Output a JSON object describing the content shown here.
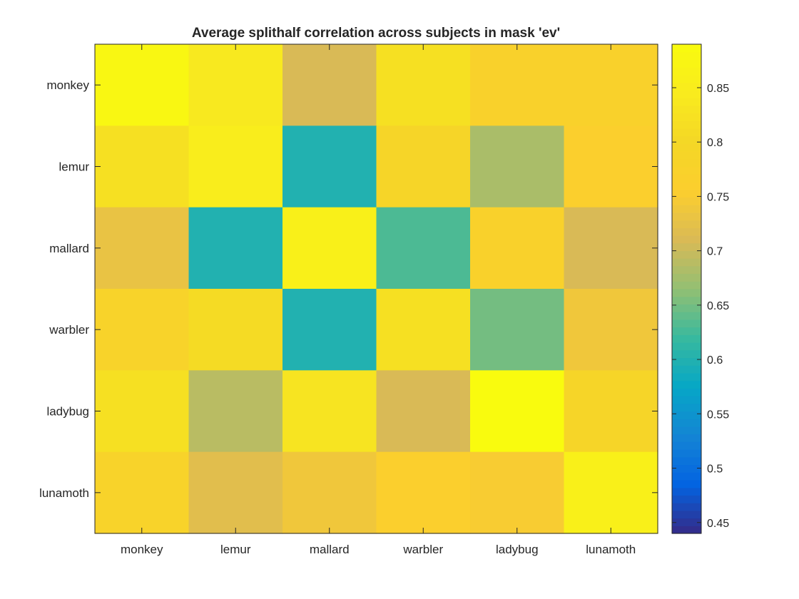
{
  "chart_data": {
    "type": "heatmap",
    "title": "Average splithalf correlation across subjects in mask 'ev'",
    "xlabel": "",
    "ylabel": "",
    "x_categories": [
      "monkey",
      "lemur",
      "mallard",
      "warbler",
      "ladybug",
      "lunamoth"
    ],
    "y_categories": [
      "monkey",
      "lemur",
      "mallard",
      "warbler",
      "ladybug",
      "lunamoth"
    ],
    "values": [
      [
        0.88,
        0.84,
        0.71,
        0.82,
        0.77,
        0.77
      ],
      [
        0.82,
        0.85,
        0.6,
        0.79,
        0.68,
        0.76
      ],
      [
        0.73,
        0.6,
        0.86,
        0.63,
        0.77,
        0.71
      ],
      [
        0.78,
        0.81,
        0.6,
        0.82,
        0.65,
        0.74
      ],
      [
        0.82,
        0.69,
        0.83,
        0.71,
        0.89,
        0.79
      ],
      [
        0.78,
        0.72,
        0.74,
        0.76,
        0.75,
        0.86
      ]
    ],
    "colorbar": {
      "colormap": "parula",
      "clim": [
        0.44,
        0.89
      ],
      "ticks": [
        "0.45",
        "0.5",
        "0.55",
        "0.6",
        "0.65",
        "0.7",
        "0.75",
        "0.8",
        "0.85"
      ]
    },
    "grid": false
  }
}
